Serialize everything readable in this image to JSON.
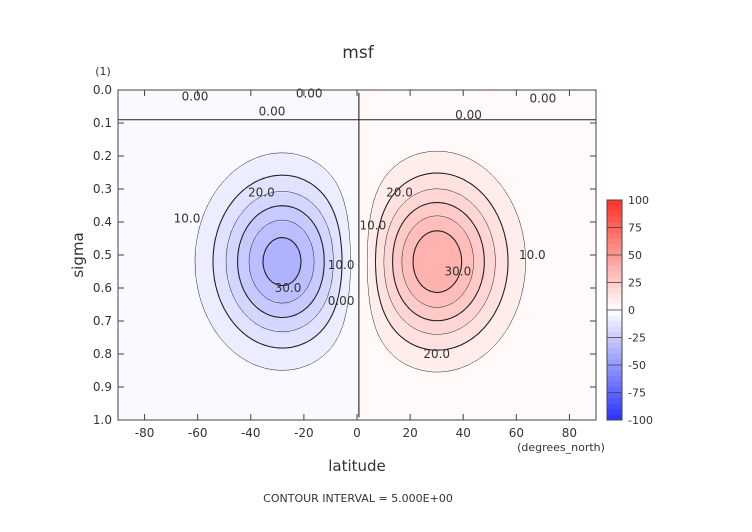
{
  "chart_data": {
    "type": "contour",
    "title": "msf",
    "xlabel": "latitude",
    "ylabel": "sigma",
    "x_unit_label": "(degrees_north)",
    "y_unit_label": "(1)",
    "xlim": [
      -90,
      90
    ],
    "ylim": [
      1.0,
      0.0
    ],
    "x_ticks": [
      "-80",
      "-60",
      "-40",
      "-20",
      "0",
      "20",
      "40",
      "60",
      "80"
    ],
    "y_ticks": [
      "0.0",
      "0.1",
      "0.2",
      "0.3",
      "0.4",
      "0.5",
      "0.6",
      "0.7",
      "0.8",
      "0.9",
      "1.0"
    ],
    "colorbar_ticks": [
      "100",
      "75",
      "50",
      "25",
      "0",
      "-25",
      "-50",
      "-75",
      "-100"
    ],
    "colorbar_range": [
      -100,
      100
    ],
    "contour_labels": [
      {
        "text": "0.00",
        "lat": -61,
        "sigma": 0.02
      },
      {
        "text": "0.00",
        "lat": -18,
        "sigma": 0.01
      },
      {
        "text": "0.00",
        "lat": 70,
        "sigma": 0.025
      },
      {
        "text": "0.00",
        "lat": -32,
        "sigma": 0.065
      },
      {
        "text": "0.00",
        "lat": 42,
        "sigma": 0.075
      },
      {
        "text": "0.00",
        "lat": -6,
        "sigma": 0.64
      },
      {
        "text": "10.0",
        "lat": -64,
        "sigma": 0.39
      },
      {
        "text": "10.0",
        "lat": -6,
        "sigma": 0.53
      },
      {
        "text": "10.0",
        "lat": 6,
        "sigma": 0.41
      },
      {
        "text": "10.0",
        "lat": 66,
        "sigma": 0.5
      },
      {
        "text": "20.0",
        "lat": -36,
        "sigma": 0.31
      },
      {
        "text": "20.0",
        "lat": 16,
        "sigma": 0.31
      },
      {
        "text": "20.0",
        "lat": 30,
        "sigma": 0.8
      },
      {
        "text": "30.0",
        "lat": -26,
        "sigma": 0.6
      },
      {
        "text": "30.0",
        "lat": 38,
        "sigma": 0.55
      }
    ],
    "footer": "CONTOUR INTERVAL = 5.000E+00",
    "cells": {
      "description_values": "streamfunction: negative cell centered at lat -28, sigma 0.52 (min about -33); positive cell centered at lat 30, sigma 0.52 (max about 35); near-zero near top",
      "neg_center": {
        "lat": -28,
        "sigma": 0.52,
        "value": -33
      },
      "pos_center": {
        "lat": 30,
        "sigma": 0.52,
        "value": 35
      }
    }
  }
}
